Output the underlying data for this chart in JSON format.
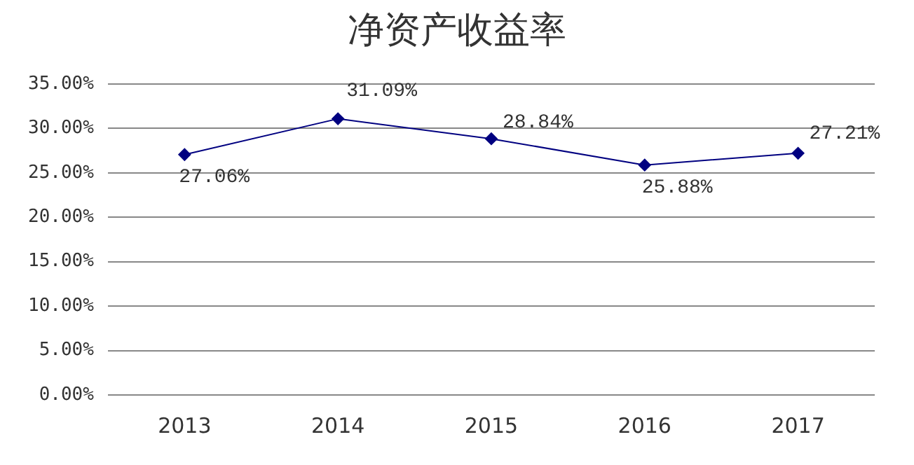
{
  "chart_data": {
    "type": "line",
    "title": "净资产收益率",
    "categories": [
      "2013",
      "2014",
      "2015",
      "2016",
      "2017"
    ],
    "series": [
      {
        "color": "#000080",
        "values": [
          27.06,
          31.09,
          28.84,
          25.88,
          27.21
        ],
        "value_labels": [
          "27.06%",
          "31.09%",
          "28.84%",
          "25.88%",
          "27.21%"
        ]
      }
    ],
    "ylim": [
      0,
      35
    ],
    "yticks": [
      {
        "value": 0,
        "label": "0.00%"
      },
      {
        "value": 5,
        "label": "5.00%"
      },
      {
        "value": 10,
        "label": "10.00%"
      },
      {
        "value": 15,
        "label": "15.00%"
      },
      {
        "value": 20,
        "label": "20.00%"
      },
      {
        "value": 25,
        "label": "25.00%"
      },
      {
        "value": 30,
        "label": "30.00%"
      },
      {
        "value": 35,
        "label": "35.00%"
      }
    ],
    "grid": "y",
    "legend": false,
    "marker": "diamond",
    "line_style": "solid"
  }
}
